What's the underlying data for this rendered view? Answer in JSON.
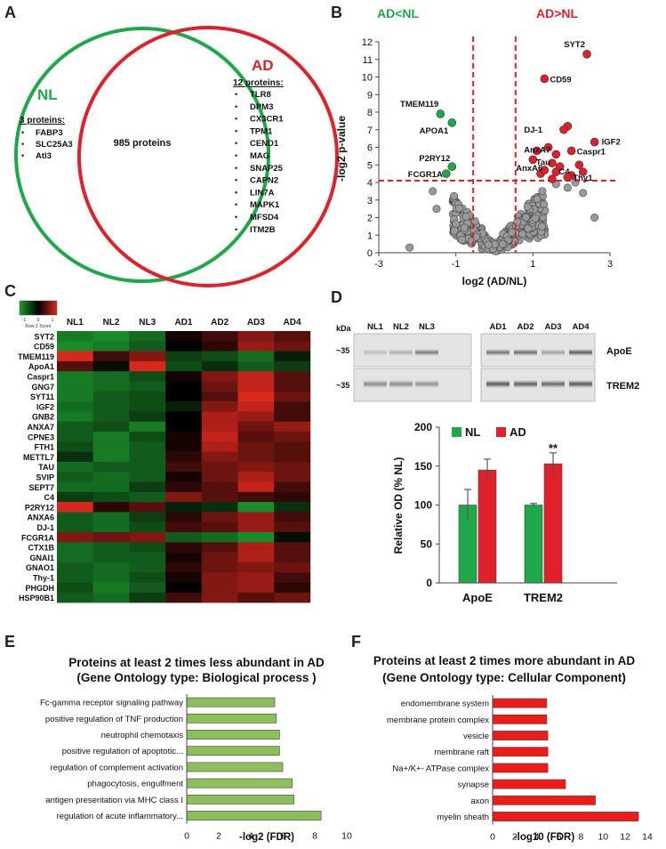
{
  "panel_letters": [
    "A",
    "B",
    "C",
    "D",
    "E",
    "F"
  ],
  "colors": {
    "nl_green": "#1fa84a",
    "ad_red": "#e0202a",
    "heat_green": "#1d9a2e",
    "heat_red": "#d8281e",
    "bar_green": "#8bbf5a",
    "bar_red": "#ee1b1b",
    "gray_point": "#9a9a9a"
  },
  "venn": {
    "nl_label": "NL",
    "ad_label": "AD",
    "shared": "985 proteins",
    "nl_header": "3 proteins:",
    "nl_items": [
      "FABP3",
      "SLC25A3",
      "Atl3"
    ],
    "ad_header": "12 proteins:",
    "ad_items": [
      "TLR8",
      "DPM3",
      "CX3CR1",
      "TPM1",
      "CEND1",
      "MAG",
      "SNAP25",
      "CAPN2",
      "LIN7A",
      "MAPK1",
      "MFSD4",
      "ITM2B"
    ],
    "bullet": "•"
  },
  "volcano_text": {
    "left_header": "AD<NL",
    "right_header": "AD>NL",
    "xlabel": "log2 (AD/NL)",
    "ylabel": "-log2 p-value",
    "xticks": [
      "-3",
      "-1",
      "1",
      "3"
    ],
    "yticks": [
      "0",
      "1",
      "2",
      "3",
      "4",
      "5",
      "6",
      "7",
      "8",
      "9",
      "10",
      "11",
      "12"
    ]
  },
  "heatmap_text": {
    "legend_caption": "Row Z-Score",
    "legend_ticks": [
      "-1",
      "0",
      "1"
    ],
    "columns": [
      "NL1",
      "NL2",
      "NL3",
      "AD1",
      "AD2",
      "AD3",
      "AD4"
    ],
    "rows": [
      "SYT2",
      "CD59",
      "TMEM119",
      "ApoA1",
      "Caspr1",
      "GNG7",
      "SYT11",
      "IGF2",
      "GNB2",
      "ANXA7",
      "CPNE3",
      "FTH1",
      "METTL7",
      "TAU",
      "SVIP",
      "SEPT7",
      "C4",
      "P2RY12",
      "ANXA6",
      "DJ-1",
      "FCGR1A",
      "CTX1B",
      "GNAI1",
      "GNAO1",
      "Thy-1",
      "PHGDH",
      "HSP90B1"
    ]
  },
  "blot": {
    "kda_label": "kDa",
    "lanes": [
      "NL1",
      "NL2",
      "NL3",
      "AD1",
      "AD2",
      "AD3",
      "AD4"
    ],
    "rows": [
      {
        "mw": "~35",
        "label": "ApoE"
      },
      {
        "mw": "~35",
        "label": "TREM2"
      }
    ],
    "significance": "**"
  },
  "chart_data": [
    {
      "type": "scatter",
      "xlabel": "log2 (AD/NL)",
      "ylabel": "-log2 p-value",
      "xlim": [
        -3,
        3
      ],
      "ylim": [
        0,
        12
      ],
      "threshold_lines": {
        "x": [
          -0.55,
          0.55
        ],
        "y": 4.1
      },
      "labeled_points": [
        {
          "name": "SYT2",
          "x": 2.4,
          "y": 11.3,
          "group": "up"
        },
        {
          "name": "CD59",
          "x": 1.3,
          "y": 9.9,
          "group": "up"
        },
        {
          "name": "TMEM119",
          "x": -1.4,
          "y": 7.9,
          "group": "down"
        },
        {
          "name": "APOA1",
          "x": -1.1,
          "y": 7.4,
          "group": "down"
        },
        {
          "name": "DJ-1",
          "x": 1.8,
          "y": 7.0,
          "group": "up"
        },
        {
          "name": "IGF2",
          "x": 2.6,
          "y": 6.3,
          "group": "up"
        },
        {
          "name": "AnxA7",
          "x": 1.6,
          "y": 5.6,
          "group": "up"
        },
        {
          "name": "Caspr1",
          "x": 2.0,
          "y": 5.8,
          "group": "up"
        },
        {
          "name": "Tau",
          "x": 1.5,
          "y": 5.1,
          "group": "up"
        },
        {
          "name": "P2RY12",
          "x": -1.1,
          "y": 4.9,
          "group": "down"
        },
        {
          "name": "AnxA6",
          "x": 1.3,
          "y": 4.7,
          "group": "up"
        },
        {
          "name": "C4",
          "x": 1.6,
          "y": 4.6,
          "group": "up"
        },
        {
          "name": "FCGR1A",
          "x": -1.25,
          "y": 4.5,
          "group": "down"
        },
        {
          "name": "Thy1",
          "x": 1.9,
          "y": 4.3,
          "group": "up"
        }
      ],
      "extra_up_points": [
        [
          1.1,
          5.8
        ],
        [
          1.9,
          7.2
        ],
        [
          1.4,
          6.0
        ],
        [
          2.2,
          5.0
        ],
        [
          1.7,
          4.9
        ],
        [
          2.0,
          4.4
        ],
        [
          1.2,
          4.5
        ],
        [
          1.5,
          4.2
        ],
        [
          2.3,
          4.6
        ],
        [
          1.0,
          5.3
        ]
      ]
    },
    {
      "type": "heatmap",
      "columns": [
        "NL1",
        "NL2",
        "NL3",
        "AD1",
        "AD2",
        "AD3",
        "AD4"
      ],
      "rows": [
        "SYT2",
        "CD59",
        "TMEM119",
        "ApoA1",
        "Caspr1",
        "GNG7",
        "SYT11",
        "IGF2",
        "GNB2",
        "ANXA7",
        "CPNE3",
        "FTH1",
        "METTL7",
        "TAU",
        "SVIP",
        "SEPT7",
        "C4",
        "P2RY12",
        "ANXA6",
        "DJ-1",
        "FCGR1A",
        "CTX1B",
        "GNAI1",
        "GNAO1",
        "Thy-1",
        "PHGDH",
        "HSP90B1"
      ],
      "zscale": [
        -1,
        1
      ],
      "values": [
        [
          -0.8,
          -0.9,
          -0.7,
          0.1,
          0.3,
          0.6,
          0.4
        ],
        [
          -0.9,
          -0.8,
          -0.6,
          0.0,
          0.2,
          0.7,
          0.5
        ],
        [
          1.0,
          0.3,
          0.6,
          -0.4,
          -0.5,
          -0.7,
          -0.2
        ],
        [
          0.4,
          -0.1,
          1.0,
          -0.5,
          -0.3,
          -0.6,
          -0.4
        ],
        [
          -0.8,
          -0.7,
          -0.5,
          0.1,
          0.6,
          0.9,
          0.4
        ],
        [
          -0.8,
          -0.7,
          -0.6,
          0.0,
          0.5,
          0.9,
          0.4
        ],
        [
          -0.8,
          -0.6,
          -0.5,
          0.0,
          0.4,
          1.0,
          0.5
        ],
        [
          -0.7,
          -0.6,
          -0.5,
          -0.2,
          0.6,
          0.9,
          0.3
        ],
        [
          -0.8,
          -0.6,
          -0.4,
          0.0,
          0.8,
          0.7,
          0.3
        ],
        [
          -0.6,
          -0.5,
          -0.8,
          0.0,
          0.8,
          0.5,
          0.7
        ],
        [
          -0.6,
          -0.8,
          -0.5,
          0.1,
          0.9,
          0.4,
          0.5
        ],
        [
          -0.5,
          -0.8,
          -0.6,
          0.1,
          0.8,
          0.5,
          0.4
        ],
        [
          -0.3,
          -0.8,
          -0.6,
          0.2,
          0.6,
          0.5,
          0.4
        ],
        [
          -0.7,
          -0.6,
          -0.6,
          0.3,
          0.5,
          0.6,
          0.5
        ],
        [
          -0.6,
          -0.7,
          -0.6,
          0.1,
          0.5,
          0.8,
          0.5
        ],
        [
          -0.7,
          -0.7,
          -0.4,
          0.2,
          0.4,
          0.9,
          0.3
        ],
        [
          -0.4,
          -0.5,
          -0.6,
          0.6,
          0.4,
          0.3,
          0.2
        ],
        [
          1.0,
          0.2,
          0.4,
          -0.2,
          -0.3,
          -0.9,
          -0.3
        ],
        [
          -0.6,
          -0.7,
          -0.4,
          0.2,
          0.5,
          0.7,
          0.3
        ],
        [
          -0.6,
          -0.7,
          -0.5,
          0.3,
          0.4,
          0.7,
          0.4
        ],
        [
          0.6,
          0.5,
          0.6,
          -0.6,
          -0.7,
          -0.9,
          -0.1
        ],
        [
          -0.7,
          -0.6,
          -0.5,
          0.2,
          0.4,
          0.8,
          0.4
        ],
        [
          -0.7,
          -0.6,
          -0.6,
          0.1,
          0.5,
          0.8,
          0.4
        ],
        [
          -0.6,
          -0.7,
          -0.6,
          0.2,
          0.5,
          0.6,
          0.5
        ],
        [
          -0.6,
          -0.7,
          -0.5,
          0.1,
          0.6,
          0.7,
          0.3
        ],
        [
          -0.5,
          -0.8,
          -0.6,
          0.0,
          0.6,
          0.7,
          0.2
        ],
        [
          -0.6,
          -0.7,
          -0.4,
          0.3,
          0.6,
          0.4,
          0.5
        ]
      ]
    },
    {
      "type": "bar",
      "categories": [
        "ApoE",
        "TREM2"
      ],
      "series": [
        {
          "name": "NL",
          "values": [
            100,
            100
          ],
          "errors": [
            20,
            2
          ]
        },
        {
          "name": "AD",
          "values": [
            145,
            153
          ],
          "errors": [
            14,
            14
          ]
        }
      ],
      "ylabel": "Relative OD (% NL)",
      "ylim": [
        0,
        200
      ],
      "yticks": [
        0,
        50,
        100,
        150,
        200
      ],
      "legend": "top"
    },
    {
      "type": "bar",
      "orientation": "horizontal",
      "title": "Proteins at least 2 times less abundant in AD",
      "subtitle": "(Gene Ontology type: Biological process )",
      "categories": [
        "Fc-gamma receptor signaling pathway",
        "positive regulation of TNF production",
        "neutrophil chemotaxis",
        "positive regulation of apoptotic...",
        "regulation of complement activation",
        "phagocytosis, engulfment",
        "antigen presentation  via MHC class I",
        "regulation of acute inflammatory..."
      ],
      "values": [
        5.5,
        5.6,
        5.8,
        5.8,
        6.0,
        6.6,
        6.7,
        8.4
      ],
      "xlabel": "-log2 (FDR)",
      "xlim": [
        0,
        10
      ],
      "xticks": [
        0,
        2,
        4,
        6,
        8,
        10
      ]
    },
    {
      "type": "bar",
      "orientation": "horizontal",
      "title": "Proteins at least 2 times more abundant in AD",
      "subtitle": "(Gene Ontology type: Cellular Component)",
      "categories": [
        "endomembrane system",
        "membrane protein complex",
        "vesicle",
        "membrane raft",
        "Na+/K+- ATPase complex",
        "synapse",
        "axon",
        "myelin sheath"
      ],
      "values": [
        4.9,
        4.9,
        5.0,
        5.0,
        5.0,
        6.6,
        9.3,
        13.2
      ],
      "xlabel": "-log10 (FDR)",
      "xlim": [
        0,
        14
      ],
      "xticks": [
        0,
        2,
        4,
        6,
        8,
        10,
        12,
        14
      ]
    }
  ]
}
